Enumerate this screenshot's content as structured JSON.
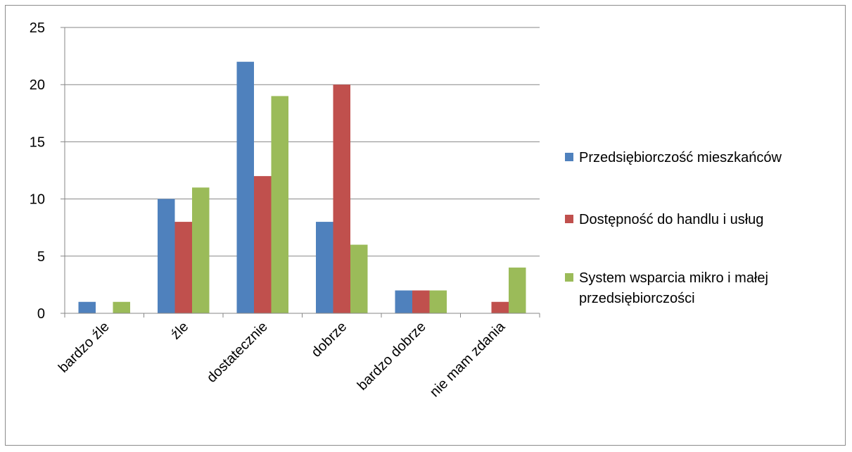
{
  "chart_data": {
    "type": "bar",
    "title": "",
    "xlabel": "",
    "ylabel": "",
    "ylim": [
      0,
      25
    ],
    "yticks": [
      0,
      5,
      10,
      15,
      20,
      25
    ],
    "grid": true,
    "legend_position": "right",
    "categories": [
      "bardzo źle",
      "źle",
      "dostatecznie",
      "dobrze",
      "bardzo dobrze",
      "nie mam zdania"
    ],
    "series": [
      {
        "name": "Przedsiębiorczość mieszkańców",
        "color": "#4f81bd",
        "values": [
          1,
          10,
          22,
          8,
          2,
          0
        ]
      },
      {
        "name": "Dostępność do handlu i usług",
        "color": "#c0504d",
        "values": [
          0,
          8,
          12,
          20,
          2,
          1
        ]
      },
      {
        "name": "System wsparcia mikro i małej przedsiębiorczości",
        "color": "#9bbb59",
        "values": [
          1,
          11,
          19,
          6,
          2,
          4
        ]
      }
    ]
  }
}
